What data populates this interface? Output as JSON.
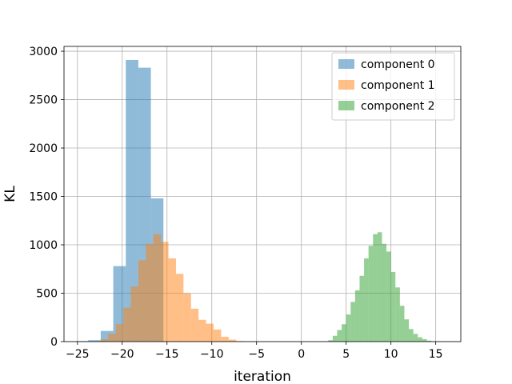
{
  "chart_data": {
    "type": "histogram",
    "title": "",
    "xlabel": "iteration",
    "ylabel": "KL",
    "xlim": [
      -26.5,
      17.8
    ],
    "ylim": [
      0,
      3050
    ],
    "xticks": [
      -25,
      -20,
      -15,
      -10,
      -5,
      0,
      5,
      10,
      15
    ],
    "yticks": [
      0,
      500,
      1000,
      1500,
      2000,
      2500,
      3000
    ],
    "grid": true,
    "legend": "top-right",
    "series": [
      {
        "name": "component 0",
        "color": "#1f77b4",
        "alpha": 0.5,
        "bin_width": 1.4,
        "bins": [
          {
            "x": -25.2,
            "count": 5
          },
          {
            "x": -23.8,
            "count": 15
          },
          {
            "x": -22.4,
            "count": 110
          },
          {
            "x": -21.0,
            "count": 780
          },
          {
            "x": -19.6,
            "count": 2910
          },
          {
            "x": -18.2,
            "count": 2830
          },
          {
            "x": -16.8,
            "count": 1480
          },
          {
            "x": -15.4,
            "count": 0
          }
        ]
      },
      {
        "name": "component 1",
        "color": "#ff7f0e",
        "alpha": 0.5,
        "bin_width": 0.84,
        "bins": [
          {
            "x": -22.4,
            "count": 25
          },
          {
            "x": -21.56,
            "count": 80
          },
          {
            "x": -20.72,
            "count": 180
          },
          {
            "x": -19.88,
            "count": 350
          },
          {
            "x": -19.04,
            "count": 570
          },
          {
            "x": -18.2,
            "count": 840
          },
          {
            "x": -17.36,
            "count": 1010
          },
          {
            "x": -16.52,
            "count": 1110
          },
          {
            "x": -15.68,
            "count": 1030
          },
          {
            "x": -14.84,
            "count": 860
          },
          {
            "x": -14.0,
            "count": 700
          },
          {
            "x": -13.16,
            "count": 500
          },
          {
            "x": -12.32,
            "count": 340
          },
          {
            "x": -11.48,
            "count": 225
          },
          {
            "x": -10.64,
            "count": 185
          },
          {
            "x": -9.8,
            "count": 125
          },
          {
            "x": -8.96,
            "count": 50
          },
          {
            "x": -8.12,
            "count": 20
          },
          {
            "x": -7.28,
            "count": 6
          },
          {
            "x": -6.44,
            "count": 3
          },
          {
            "x": -5.6,
            "count": 2
          },
          {
            "x": -4.76,
            "count": 0
          }
        ]
      },
      {
        "name": "component 2",
        "color": "#2ca02c",
        "alpha": 0.5,
        "bin_width": 0.5,
        "bins": [
          {
            "x": 2.5,
            "count": 3
          },
          {
            "x": 3.0,
            "count": 15
          },
          {
            "x": 3.5,
            "count": 60
          },
          {
            "x": 4.0,
            "count": 120
          },
          {
            "x": 4.5,
            "count": 180
          },
          {
            "x": 5.0,
            "count": 280
          },
          {
            "x": 5.5,
            "count": 410
          },
          {
            "x": 6.0,
            "count": 530
          },
          {
            "x": 6.5,
            "count": 680
          },
          {
            "x": 7.0,
            "count": 860
          },
          {
            "x": 7.5,
            "count": 990
          },
          {
            "x": 8.0,
            "count": 1110
          },
          {
            "x": 8.5,
            "count": 1130
          },
          {
            "x": 9.0,
            "count": 1010
          },
          {
            "x": 9.5,
            "count": 930
          },
          {
            "x": 10.0,
            "count": 720
          },
          {
            "x": 10.5,
            "count": 560
          },
          {
            "x": 11.0,
            "count": 370
          },
          {
            "x": 11.5,
            "count": 230
          },
          {
            "x": 12.0,
            "count": 130
          },
          {
            "x": 12.5,
            "count": 80
          },
          {
            "x": 13.0,
            "count": 45
          },
          {
            "x": 13.5,
            "count": 25
          },
          {
            "x": 14.0,
            "count": 10
          },
          {
            "x": 14.5,
            "count": 4
          },
          {
            "x": 15.0,
            "count": 2
          },
          {
            "x": 15.5,
            "count": 1
          }
        ]
      }
    ]
  }
}
